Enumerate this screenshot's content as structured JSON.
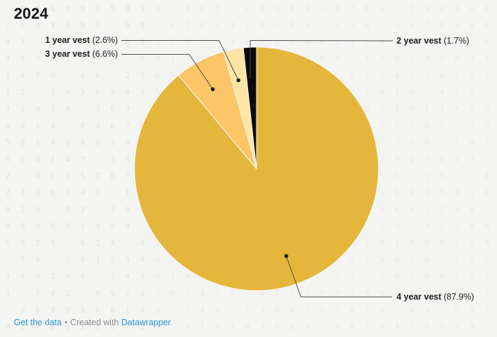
{
  "header": {
    "title": "2024"
  },
  "chart_data": {
    "type": "pie",
    "title": "2024",
    "unit": "%",
    "direction": "clockwise",
    "start_angle": "12 o'clock",
    "legend": "none",
    "labels_style": "external labels with leader lines and dots",
    "slices": [
      {
        "label": "4 year vest",
        "value": 87.9,
        "color": "#E4B73C"
      },
      {
        "label": "3 year vest",
        "value": 6.6,
        "color": "#FCC567"
      },
      {
        "label": "1 year vest",
        "value": 2.6,
        "color": "#FCE5A5"
      },
      {
        "label": "2 year vest",
        "value": 1.7,
        "color": "#0B0B0B"
      }
    ]
  },
  "labels": [
    {
      "name": "1 year vest",
      "pct": " (2.6%)"
    },
    {
      "name": "3 year vest",
      "pct": " (6.6%)"
    },
    {
      "name": "2 year vest",
      "pct": " (1.7%)"
    },
    {
      "name": "4 year vest",
      "pct": " (87.9%)"
    }
  ],
  "footer": {
    "get_data_label": "Get the data",
    "separator": "•",
    "created_with": "Created with",
    "brand_label": "Datawrapper"
  }
}
